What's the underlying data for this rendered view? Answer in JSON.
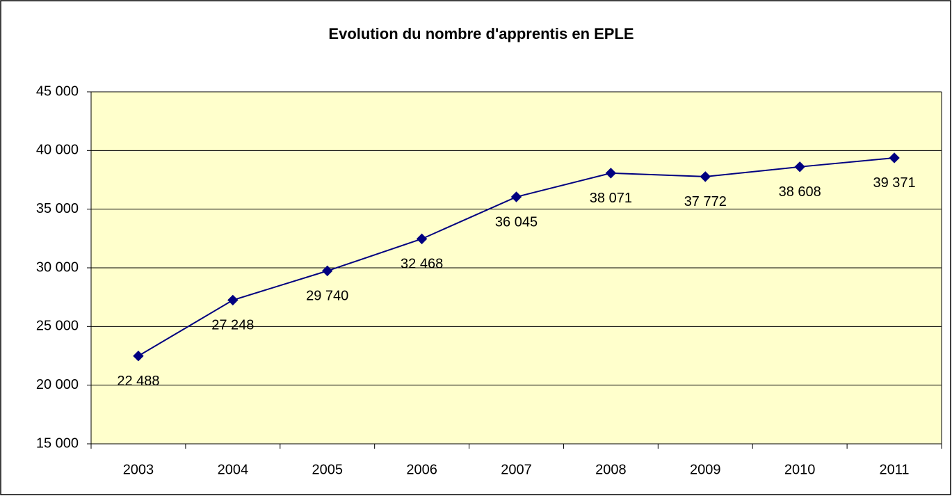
{
  "chart_data": {
    "type": "line",
    "title": "Evolution du nombre d'apprentis en EPLE",
    "categories": [
      "2003",
      "2004",
      "2005",
      "2006",
      "2007",
      "2008",
      "2009",
      "2010",
      "2011"
    ],
    "values": [
      22488,
      27248,
      29740,
      32468,
      36045,
      38071,
      37772,
      38608,
      39371
    ],
    "value_labels": [
      "22 488",
      "27 248",
      "29 740",
      "32 468",
      "36 045",
      "38 071",
      "37 772",
      "38 608",
      "39 371"
    ],
    "color": "#000080",
    "ylim": [
      15000,
      45000
    ],
    "yticks": [
      {
        "value": 15000,
        "label": "15 000"
      },
      {
        "value": 20000,
        "label": "20 000"
      },
      {
        "value": 25000,
        "label": "25 000"
      },
      {
        "value": 30000,
        "label": "30 000"
      },
      {
        "value": 35000,
        "label": "35 000"
      },
      {
        "value": 40000,
        "label": "40 000"
      },
      {
        "value": 45000,
        "label": "45 000"
      }
    ],
    "grid": true
  }
}
